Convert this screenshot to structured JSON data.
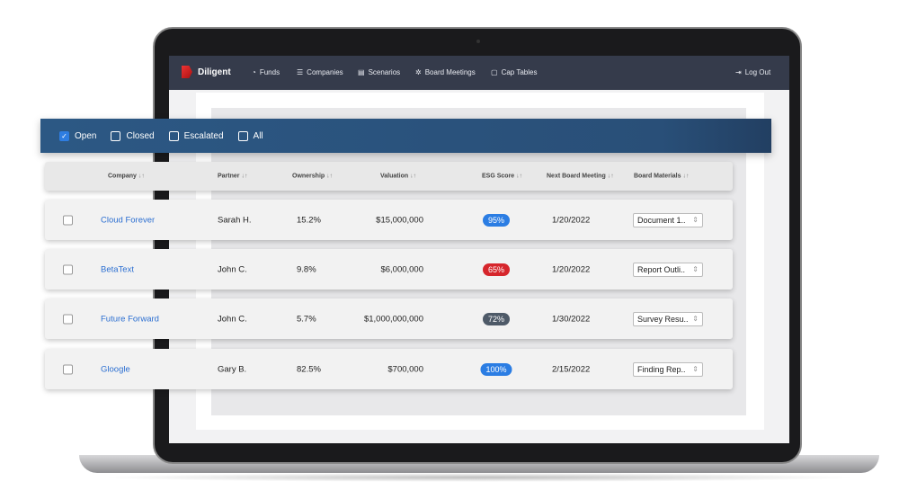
{
  "nav": {
    "brand": "Diligent",
    "items": [
      {
        "label": "Funds",
        "icon": "pie-chart-icon",
        "glyph": "◔"
      },
      {
        "label": "Companies",
        "icon": "list-icon",
        "glyph": "☰"
      },
      {
        "label": "Scenarios",
        "icon": "document-icon",
        "glyph": "▤"
      },
      {
        "label": "Board Meetings",
        "icon": "network-icon",
        "glyph": "✲"
      },
      {
        "label": "Cap Tables",
        "icon": "book-icon",
        "glyph": "▢"
      }
    ],
    "logout": "Log Out"
  },
  "filters": [
    {
      "label": "Open",
      "checked": true
    },
    {
      "label": "Closed",
      "checked": false
    },
    {
      "label": "Escalated",
      "checked": false
    },
    {
      "label": "All",
      "checked": false
    }
  ],
  "table": {
    "headers": [
      "Company",
      "Partner",
      "Ownership",
      "Valuation",
      "ESG Score",
      "Next Board Meeting",
      "Board Materials"
    ],
    "sort_glyph": "↓↑",
    "rows": [
      {
        "company": "Cloud Forever",
        "partner": "Sarah H.",
        "ownership": "15.2%",
        "valuation": "$15,000,000",
        "esg": "95%",
        "esg_color": "#2b7de3",
        "meeting": "1/20/2022",
        "materials": "Document 1.."
      },
      {
        "company": "BetaText",
        "partner": "John C.",
        "ownership": "9.8%",
        "valuation": "$6,000,000",
        "esg": "65%",
        "esg_color": "#d6262c",
        "meeting": "1/20/2022",
        "materials": "Report Outli.."
      },
      {
        "company": "Future Forward",
        "partner": "John C.",
        "ownership": "5.7%",
        "valuation": "$1,000,000,000",
        "esg": "72%",
        "esg_color": "#4e5a68",
        "meeting": "1/30/2022",
        "materials": "Survey Resu.."
      },
      {
        "company": "Gloogle",
        "partner": "Gary B.",
        "ownership": "82.5%",
        "valuation": "$700,000",
        "esg": "100%",
        "esg_color": "#2b7de3",
        "meeting": "2/15/2022",
        "materials": "Finding Rep.."
      }
    ]
  }
}
